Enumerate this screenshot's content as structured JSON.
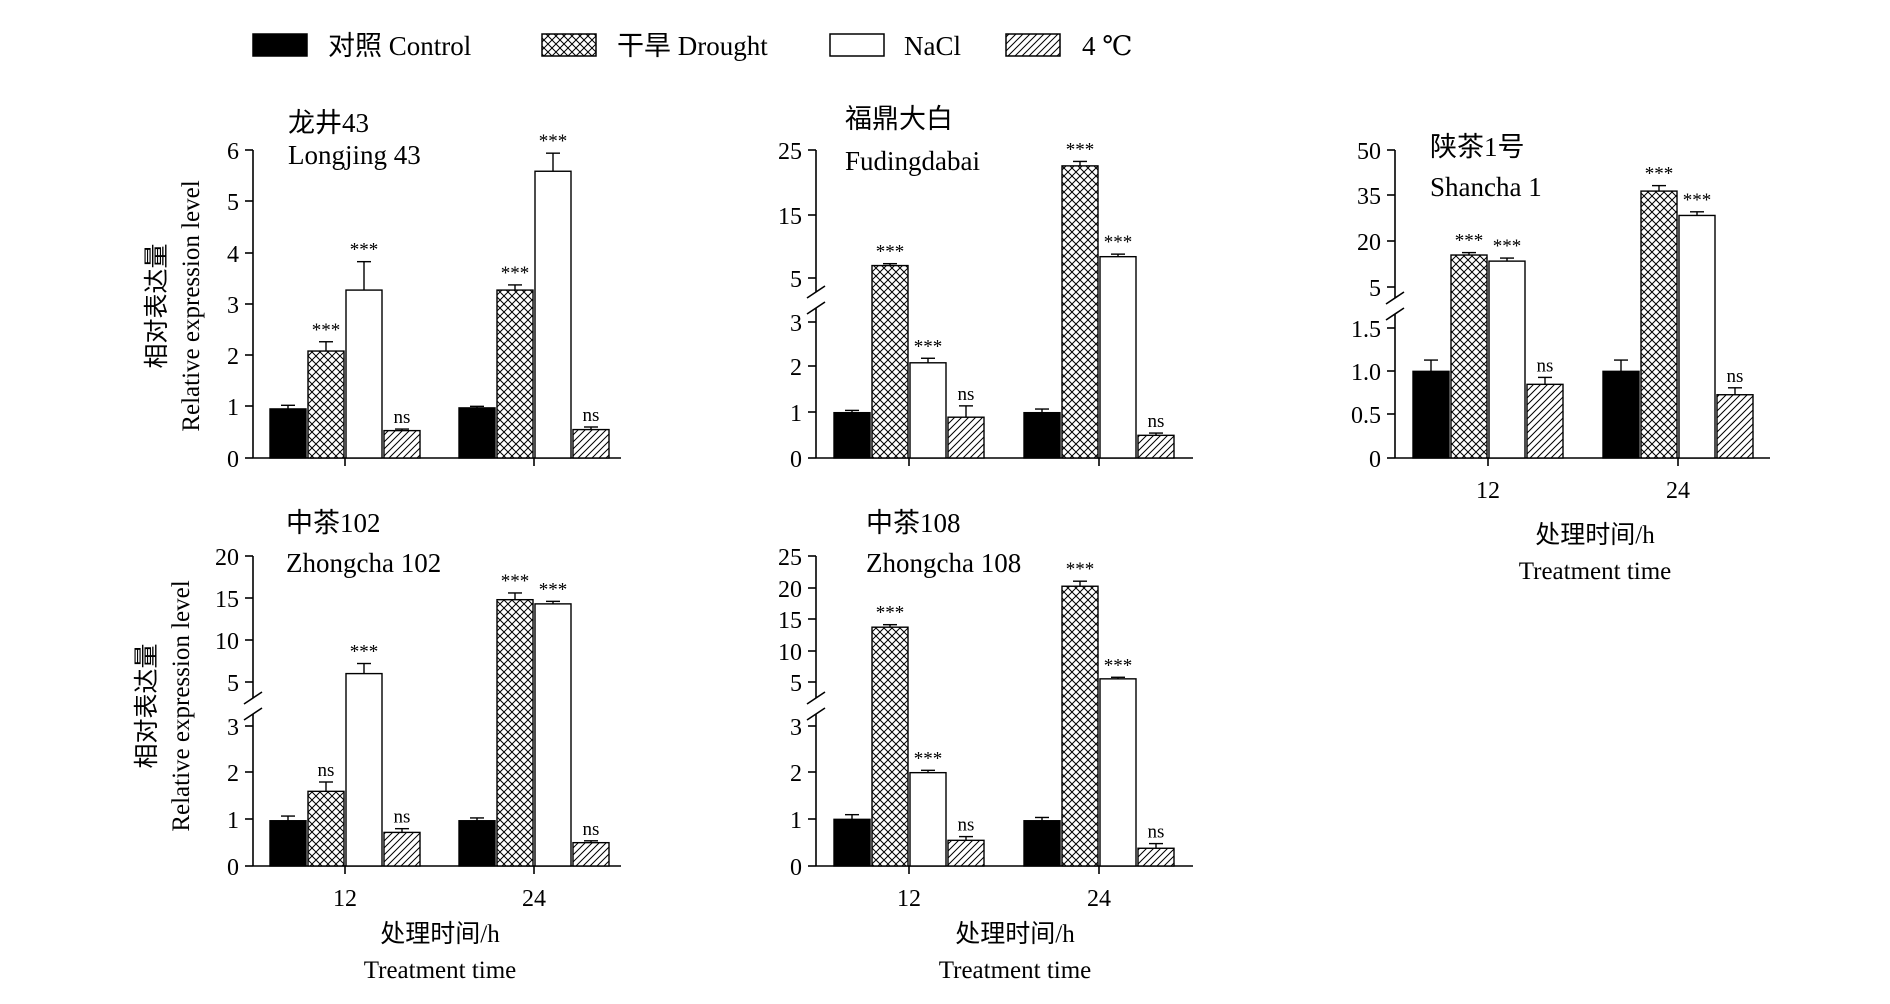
{
  "legend": [
    {
      "label": "对照 Control",
      "pattern": "solid"
    },
    {
      "label": "干旱 Drought",
      "pattern": "crosshatch"
    },
    {
      "label": "NaCl",
      "pattern": "empty"
    },
    {
      "label": "4 ℃",
      "pattern": "diagonal"
    }
  ],
  "colors": {
    "ink": "#000000",
    "background": "#ffffff"
  },
  "xaxis": {
    "title_zh": "处理时间/h",
    "title_en": "Treatment time",
    "categories": [
      "12",
      "24"
    ]
  },
  "yaxis": {
    "title_zh": "相对表达量",
    "title_en": "Relative expression level"
  },
  "chart_data": [
    {
      "type": "bar",
      "title_zh": "龙井43",
      "title_en": "Longjing 43",
      "categories": [
        "12",
        "24"
      ],
      "series": [
        {
          "name": "对照 Control",
          "values": [
            0.95,
            0.97
          ],
          "errors": [
            0.07,
            0.03
          ],
          "sig": [
            "",
            ""
          ]
        },
        {
          "name": "干旱 Drought",
          "values": [
            2.07,
            3.25
          ],
          "errors": [
            0.18,
            0.1
          ],
          "sig": [
            "***",
            "***"
          ]
        },
        {
          "name": "NaCl",
          "values": [
            3.25,
            5.55
          ],
          "errors": [
            0.55,
            0.35
          ],
          "sig": [
            "***",
            "***"
          ]
        },
        {
          "name": "4 ℃",
          "values": [
            0.53,
            0.55
          ],
          "errors": [
            0.03,
            0.05
          ],
          "sig": [
            "ns",
            "ns"
          ]
        }
      ],
      "ylim": [
        0,
        6
      ],
      "yticks": [
        "0",
        "1",
        "2",
        "3",
        "4",
        "5",
        "6"
      ],
      "axis_break": false
    },
    {
      "type": "bar",
      "title_zh": "福鼎大白",
      "title_en": "Fudingdabai",
      "categories": [
        "12",
        "24"
      ],
      "series": [
        {
          "name": "对照 Control",
          "values": [
            1.0,
            1.0
          ],
          "errors": [
            0.05,
            0.08
          ],
          "sig": [
            "",
            ""
          ]
        },
        {
          "name": "干旱 Drought",
          "values": [
            6.8,
            22.5
          ],
          "errors": [
            0.3,
            0.7
          ],
          "sig": [
            "***",
            "***"
          ]
        },
        {
          "name": "NaCl",
          "values": [
            2.1,
            8.2
          ],
          "errors": [
            0.1,
            0.4
          ],
          "sig": [
            "***",
            "***"
          ]
        },
        {
          "name": "4 ℃",
          "values": [
            0.9,
            0.5
          ],
          "errors": [
            0.25,
            0.05
          ],
          "sig": [
            "ns",
            "ns"
          ]
        }
      ],
      "ylim": [
        0,
        25
      ],
      "yticks": [
        "0",
        "1",
        "2",
        "3",
        "5",
        "15",
        "25"
      ],
      "axis_break": true
    },
    {
      "type": "bar",
      "title_zh": "陕茶1号",
      "title_en": "Shancha 1",
      "categories": [
        "12",
        "24"
      ],
      "series": [
        {
          "name": "对照 Control",
          "values": [
            1.0,
            1.0
          ],
          "errors": [
            0.13,
            0.13
          ],
          "sig": [
            "",
            ""
          ]
        },
        {
          "name": "干旱 Drought",
          "values": [
            15.5,
            36.5
          ],
          "errors": [
            0.8,
            1.8
          ],
          "sig": [
            "***",
            "***"
          ]
        },
        {
          "name": "NaCl",
          "values": [
            13.5,
            28.5
          ],
          "errors": [
            1.0,
            1.2
          ],
          "sig": [
            "***",
            "***"
          ]
        },
        {
          "name": "4 ℃",
          "values": [
            0.85,
            0.73
          ],
          "errors": [
            0.08,
            0.08
          ],
          "sig": [
            "ns",
            "ns"
          ]
        }
      ],
      "ylim": [
        0,
        50
      ],
      "yticks": [
        "0",
        "0.5",
        "1.0",
        "1.5",
        "5",
        "20",
        "35",
        "50"
      ],
      "axis_break": true
    },
    {
      "type": "bar",
      "title_zh": "中茶102",
      "title_en": "Zhongcha 102",
      "categories": [
        "12",
        "24"
      ],
      "series": [
        {
          "name": "对照 Control",
          "values": [
            0.97,
            0.97
          ],
          "errors": [
            0.1,
            0.06
          ],
          "sig": [
            "",
            ""
          ]
        },
        {
          "name": "干旱 Drought",
          "values": [
            1.6,
            14.8
          ],
          "errors": [
            0.2,
            0.8
          ],
          "sig": [
            "ns",
            "***"
          ]
        },
        {
          "name": "NaCl",
          "values": [
            6.0,
            14.3
          ],
          "errors": [
            1.2,
            0.3
          ],
          "sig": [
            "***",
            "***"
          ]
        },
        {
          "name": "4 ℃",
          "values": [
            0.72,
            0.5
          ],
          "errors": [
            0.08,
            0.04
          ],
          "sig": [
            "ns",
            "ns"
          ]
        }
      ],
      "ylim": [
        0,
        20
      ],
      "yticks": [
        "0",
        "1",
        "2",
        "3",
        "5",
        "10",
        "15",
        "20"
      ],
      "axis_break": true
    },
    {
      "type": "bar",
      "title_zh": "中茶108",
      "title_en": "Zhongcha 108",
      "categories": [
        "12",
        "24"
      ],
      "series": [
        {
          "name": "对照 Control",
          "values": [
            1.0,
            0.97
          ],
          "errors": [
            0.1,
            0.07
          ],
          "sig": [
            "",
            ""
          ]
        },
        {
          "name": "干旱 Drought",
          "values": [
            13.7,
            20.2
          ],
          "errors": [
            0.4,
            0.8
          ],
          "sig": [
            "***",
            "***"
          ]
        },
        {
          "name": "NaCl",
          "values": [
            2.0,
            5.5
          ],
          "errors": [
            0.05,
            0.25
          ],
          "sig": [
            "***",
            "***"
          ]
        },
        {
          "name": "4 ℃",
          "values": [
            0.55,
            0.38
          ],
          "errors": [
            0.08,
            0.1
          ],
          "sig": [
            "ns",
            "ns"
          ]
        }
      ],
      "ylim": [
        0,
        25
      ],
      "yticks": [
        "0",
        "1",
        "2",
        "3",
        "5",
        "10",
        "15",
        "20",
        "25"
      ],
      "axis_break": true
    }
  ]
}
